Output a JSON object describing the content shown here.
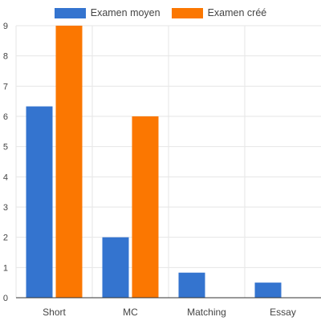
{
  "chart_data": {
    "type": "bar",
    "categories": [
      "Short",
      "MC",
      "Matching",
      "Essay"
    ],
    "series": [
      {
        "name": "Examen moyen",
        "color": "#3474cf",
        "values": [
          6.33,
          2.0,
          0.83,
          0.5
        ]
      },
      {
        "name": "Examen créé",
        "color": "#fb7701",
        "values": [
          9,
          6,
          0,
          0
        ]
      }
    ],
    "ylim": [
      0,
      9
    ],
    "yticks": [
      "0",
      "1",
      "2",
      "3",
      "4",
      "5",
      "6",
      "7",
      "8",
      "9"
    ],
    "grid": true,
    "legend_position": "top-center"
  }
}
